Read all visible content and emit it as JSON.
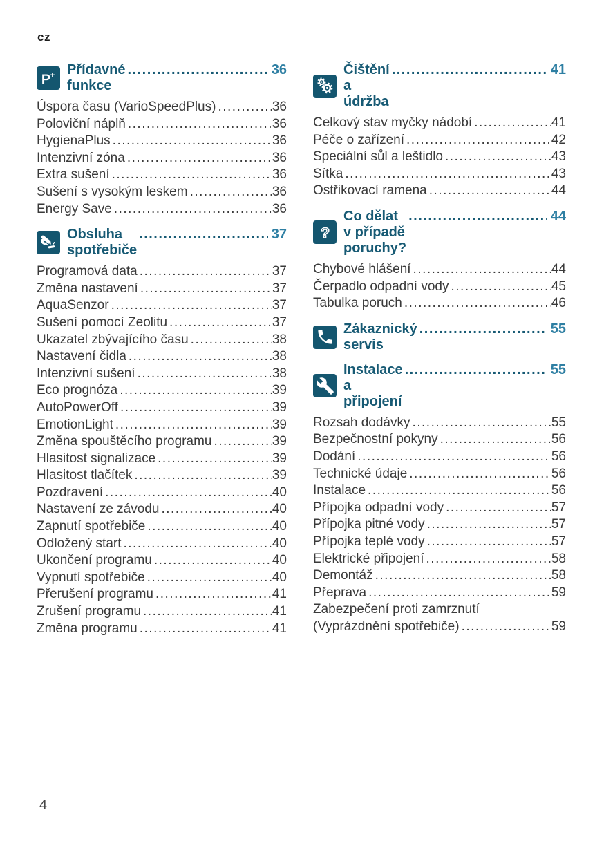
{
  "page": {
    "locale": "cz",
    "number": "4"
  },
  "colors": {
    "icon_bg": "#14566F",
    "heading_text": "#175A74",
    "heading_page": "#2E7FA3",
    "body_text": "#3A3A3A"
  },
  "toc": {
    "columns": [
      {
        "sections": [
          {
            "icon": "p-plus-icon",
            "title": "Přídavné funkce",
            "page": "36",
            "entries": [
              {
                "label": "Úspora času (VarioSpeedPlus)",
                "page": "36"
              },
              {
                "label": "Poloviční náplň",
                "page": "36"
              },
              {
                "label": "HygienaPlus",
                "page": "36"
              },
              {
                "label": "Intenzivní zóna",
                "page": "36"
              },
              {
                "label": "Extra sušení",
                "page": "36"
              },
              {
                "label": "Sušení s vysokým leskem",
                "page": "36"
              },
              {
                "label": "Energy Save",
                "page": "36"
              }
            ]
          },
          {
            "icon": "hand-press-icon",
            "title": "Obsluha spotřebiče",
            "page": "37",
            "entries": [
              {
                "label": "Programová data",
                "page": "37"
              },
              {
                "label": "Změna nastavení",
                "page": "37"
              },
              {
                "label": "AquaSenzor",
                "page": "37"
              },
              {
                "label": "Sušení pomocí Zeolitu",
                "page": "37"
              },
              {
                "label": "Ukazatel zbývajícího času",
                "page": "38"
              },
              {
                "label": "Nastavení čidla",
                "page": "38"
              },
              {
                "label": "Intenzivní sušení",
                "page": "38"
              },
              {
                "label": "Eco prognóza",
                "page": "39"
              },
              {
                "label": "AutoPowerOff",
                "page": "39"
              },
              {
                "label": "EmotionLight",
                "page": "39"
              },
              {
                "label": "Změna spouštěcího programu",
                "page": "39"
              },
              {
                "label": "Hlasitost signalizace",
                "page": "39"
              },
              {
                "label": "Hlasitost tlačítek",
                "page": "39"
              },
              {
                "label": "Pozdravení",
                "page": "40"
              },
              {
                "label": "Nastavení ze závodu",
                "page": "40"
              },
              {
                "label": "Zapnutí spotřebiče",
                "page": "40"
              },
              {
                "label": "Odložený start",
                "page": "40"
              },
              {
                "label": "Ukončení programu",
                "page": "40"
              },
              {
                "label": "Vypnutí spotřebiče",
                "page": "40"
              },
              {
                "label": "Přerušení programu",
                "page": "41"
              },
              {
                "label": "Zrušení programu",
                "page": "41"
              },
              {
                "label": "Změna programu",
                "page": "41"
              }
            ]
          }
        ]
      },
      {
        "sections": [
          {
            "icon": "gears-icon",
            "title": "Čištění a údržba",
            "page": "41",
            "entries": [
              {
                "label": "Celkový stav myčky nádobí",
                "page": "41"
              },
              {
                "label": "Péče o zařízení",
                "page": "42"
              },
              {
                "label": "Speciální sůl a leštidlo",
                "page": "43"
              },
              {
                "label": "Sítka",
                "page": "43"
              },
              {
                "label": "Ostřikovací ramena",
                "page": "44"
              }
            ]
          },
          {
            "icon": "question-icon",
            "title": "Co dělat v případě poruchy?",
            "page": "44",
            "entries": [
              {
                "label": "Chybové hlášení",
                "page": "44"
              },
              {
                "label": "Čerpadlo odpadní vody",
                "page": "45"
              },
              {
                "label": "Tabulka poruch",
                "page": "46"
              }
            ]
          },
          {
            "icon": "phone-icon",
            "title": "Zákaznický servis",
            "page": "55",
            "entries": []
          },
          {
            "icon": "wrench-icon",
            "title": "Instalace a připojení",
            "page": "55",
            "entries": [
              {
                "label": "Rozsah dodávky",
                "page": "55"
              },
              {
                "label": "Bezpečnostní pokyny",
                "page": "56"
              },
              {
                "label": "Dodání",
                "page": "56"
              },
              {
                "label": "Technické údaje",
                "page": "56"
              },
              {
                "label": "Instalace",
                "page": "56"
              },
              {
                "label": "Přípojka odpadní vody",
                "page": "57"
              },
              {
                "label": "Přípojka pitné vody",
                "page": "57"
              },
              {
                "label": "Přípojka teplé vody",
                "page": "57"
              },
              {
                "label": "Elektrické připojení",
                "page": "58"
              },
              {
                "label": "Demontáž",
                "page": "58"
              },
              {
                "label": "Přeprava",
                "page": "59"
              },
              {
                "label": "Zabezpečení proti zamrznutí",
                "label2": "(Vyprázdnění spotřebiče)",
                "page": "59"
              }
            ]
          }
        ]
      }
    ]
  }
}
